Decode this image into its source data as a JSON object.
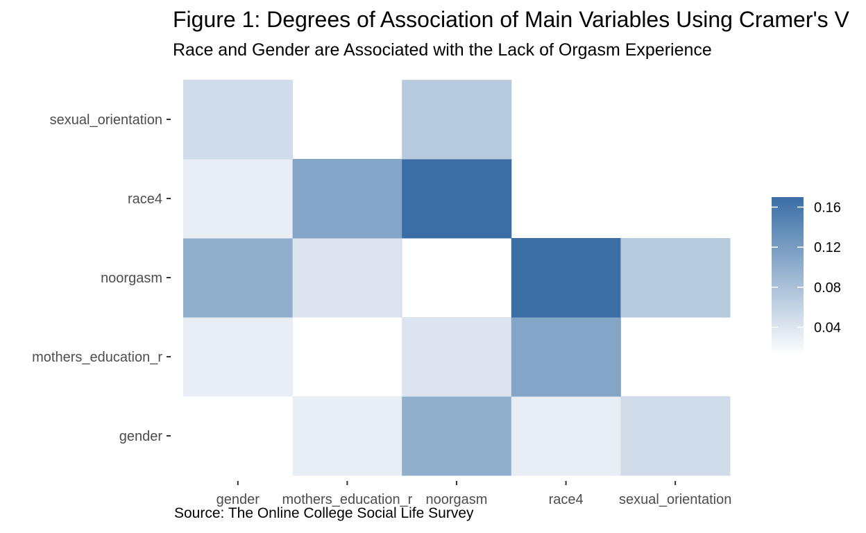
{
  "title": "Figure 1: Degrees of Association of Main Variables Using Cramer's V",
  "subtitle": "Race and Gender are Associated with the Lack of Orgasm Experience",
  "caption": "Source: The Online College Social Life Survey",
  "colors": {
    "low": "#ffffff",
    "high": "#3a6ea5",
    "axis_text": "#4d4d4d",
    "tick": "#333333"
  },
  "chart_data": {
    "type": "heatmap",
    "x_categories": [
      "gender",
      "mothers_education_r",
      "noorgasm",
      "race4",
      "sexual_orientation"
    ],
    "y_categories": [
      "gender",
      "mothers_education_r",
      "noorgasm",
      "race4",
      "sexual_orientation"
    ],
    "cells": [
      {
        "x": "gender",
        "y": "gender",
        "value": null
      },
      {
        "x": "mothers_education_r",
        "y": "gender",
        "value": 0.03
      },
      {
        "x": "noorgasm",
        "y": "gender",
        "value": 0.1
      },
      {
        "x": "race4",
        "y": "gender",
        "value": 0.03
      },
      {
        "x": "sexual_orientation",
        "y": "gender",
        "value": 0.05
      },
      {
        "x": "gender",
        "y": "mothers_education_r",
        "value": 0.03
      },
      {
        "x": "mothers_education_r",
        "y": "mothers_education_r",
        "value": null
      },
      {
        "x": "noorgasm",
        "y": "mothers_education_r",
        "value": 0.04
      },
      {
        "x": "race4",
        "y": "mothers_education_r",
        "value": 0.11
      },
      {
        "x": "sexual_orientation",
        "y": "mothers_education_r",
        "value": null
      },
      {
        "x": "gender",
        "y": "noorgasm",
        "value": 0.1
      },
      {
        "x": "mothers_education_r",
        "y": "noorgasm",
        "value": 0.04
      },
      {
        "x": "noorgasm",
        "y": "noorgasm",
        "value": null
      },
      {
        "x": "race4",
        "y": "noorgasm",
        "value": 0.17
      },
      {
        "x": "sexual_orientation",
        "y": "noorgasm",
        "value": 0.07
      },
      {
        "x": "gender",
        "y": "race4",
        "value": 0.03
      },
      {
        "x": "mothers_education_r",
        "y": "race4",
        "value": 0.11
      },
      {
        "x": "noorgasm",
        "y": "race4",
        "value": 0.17
      },
      {
        "x": "race4",
        "y": "race4",
        "value": null
      },
      {
        "x": "sexual_orientation",
        "y": "race4",
        "value": null
      },
      {
        "x": "gender",
        "y": "sexual_orientation",
        "value": 0.05
      },
      {
        "x": "mothers_education_r",
        "y": "sexual_orientation",
        "value": null
      },
      {
        "x": "noorgasm",
        "y": "sexual_orientation",
        "value": 0.07
      },
      {
        "x": "race4",
        "y": "sexual_orientation",
        "value": null
      },
      {
        "x": "sexual_orientation",
        "y": "sexual_orientation",
        "value": null
      }
    ],
    "color_scale": {
      "min": 0.012,
      "max": 0.17,
      "ticks": [
        0.04,
        0.08,
        0.12,
        0.16
      ],
      "tick_labels": [
        "0.04",
        "0.08",
        "0.12",
        "0.16"
      ]
    },
    "legend_position": "right",
    "grid": false
  }
}
